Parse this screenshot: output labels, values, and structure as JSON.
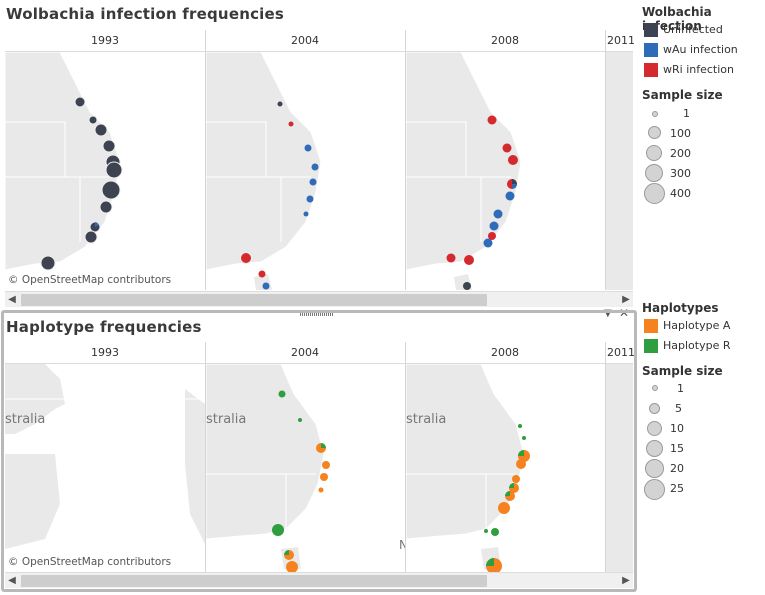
{
  "dashboard": {
    "title_top": "Wolbachia infection frequencies",
    "title_bottom": "Haplotype frequencies",
    "osm_credit": "© OpenStreetMap contributors",
    "columns": [
      "1993",
      "2004",
      "2008",
      "2011"
    ],
    "place_label": "stralia",
    "place_label_1993": "stralia",
    "partial_letter": "N"
  },
  "legend_infection": {
    "title": "Wolbachia infection",
    "items": [
      {
        "label": "Uninfected",
        "color": "#3d4350"
      },
      {
        "label": "wAu infection",
        "color": "#2e6bb8"
      },
      {
        "label": "wRi infection",
        "color": "#d42a2e"
      }
    ],
    "size_title": "Sample size",
    "sizes": [
      "1",
      "100",
      "200",
      "300",
      "400"
    ]
  },
  "legend_haplotype": {
    "title": "Haplotypes",
    "items": [
      {
        "label": "Haplotype A",
        "color": "#f5821f"
      },
      {
        "label": "Haplotype R",
        "color": "#2f9e3e"
      }
    ],
    "size_title": "Sample size",
    "sizes": [
      "1",
      "5",
      "10",
      "15",
      "20",
      "25"
    ]
  },
  "chart_data": [
    {
      "type": "map-pie",
      "title": "Wolbachia infection frequencies",
      "panels": [
        "1993",
        "2004",
        "2008",
        "2011"
      ],
      "series": [
        "Uninfected",
        "wAu infection",
        "wRi infection"
      ]
    },
    {
      "type": "map-pie",
      "title": "Haplotype frequencies",
      "panels": [
        "1993",
        "2004",
        "2008",
        "2011"
      ],
      "series": [
        "Haplotype A",
        "Haplotype R"
      ]
    }
  ]
}
